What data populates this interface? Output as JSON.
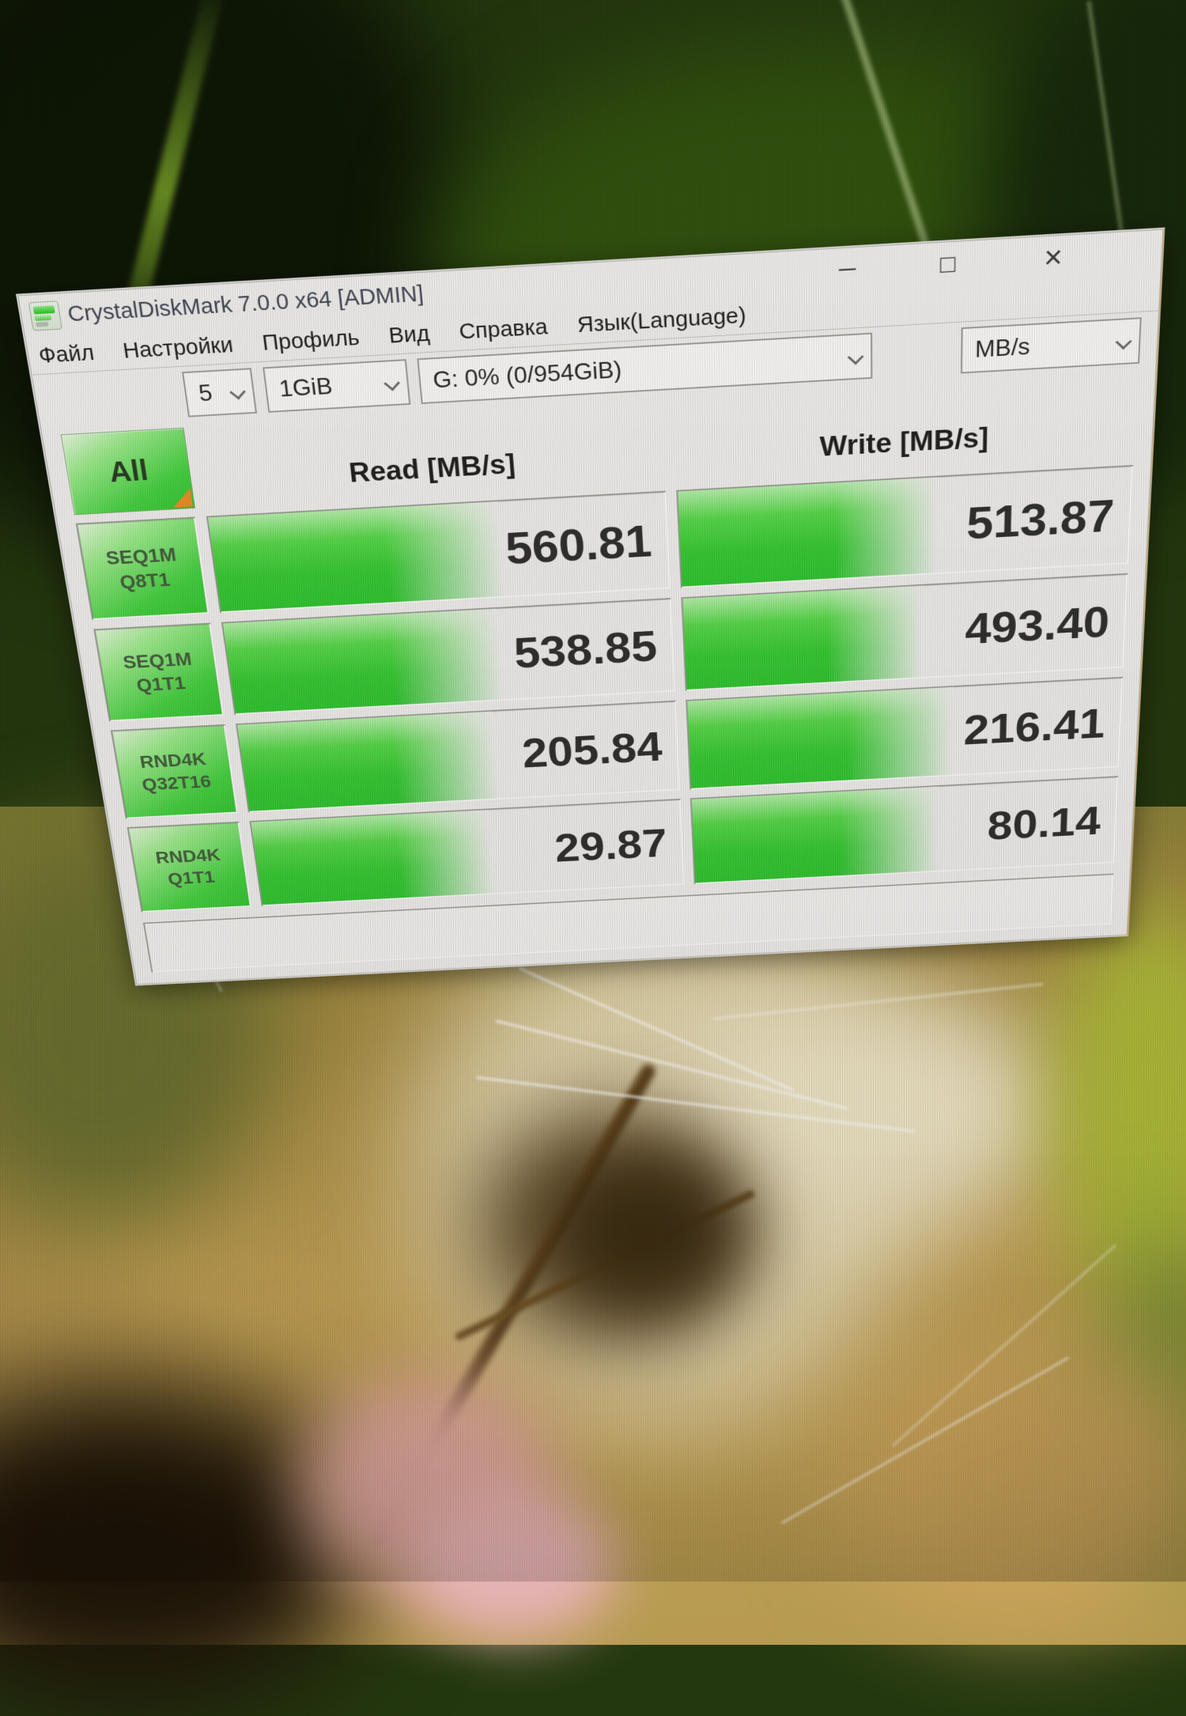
{
  "window": {
    "title": "CrystalDiskMark 7.0.0 x64 [ADMIN]"
  },
  "icons": {
    "minimize": "─",
    "maximize": "□",
    "close": "×",
    "chevron_down": "v",
    "app_icon": "crystaldiskmark-gauge"
  },
  "menu_items": [
    "Файл",
    "Настройки",
    "Профиль",
    "Вид",
    "Справка",
    "Язык(Language)"
  ],
  "toolbar": {
    "test_count": "5",
    "test_size": "1GiB",
    "target_drive": "G: 0% (0/954GiB)",
    "unit": "MB/s"
  },
  "all_button_label": "All",
  "columns": {
    "read_header": "Read [MB/s]",
    "write_header": "Write [MB/s]"
  },
  "results": {
    "rows": [
      {
        "test": "SEQ1M",
        "queue_thread": "Q8T1",
        "read": "560.81",
        "write": "513.87",
        "read_fill_pct": 63,
        "write_fill_pct": 57
      },
      {
        "test": "SEQ1M",
        "queue_thread": "Q1T1",
        "read": "538.85",
        "write": "493.40",
        "read_fill_pct": 61,
        "write_fill_pct": 54
      },
      {
        "test": "RND4K",
        "queue_thread": "Q32T16",
        "read": "205.84",
        "write": "216.41",
        "read_fill_pct": 58,
        "write_fill_pct": 61
      },
      {
        "test": "RND4K",
        "queue_thread": "Q1T1",
        "read": "29.87",
        "write": "80.14",
        "read_fill_pct": 55,
        "write_fill_pct": 58
      }
    ]
  },
  "message_box_text": "",
  "colors": {
    "bar_green": "#3ed23a",
    "bar_green_dark": "#29c62a",
    "accent_orange": "#ef8b1f",
    "window_bg": "#f2f1ef"
  }
}
